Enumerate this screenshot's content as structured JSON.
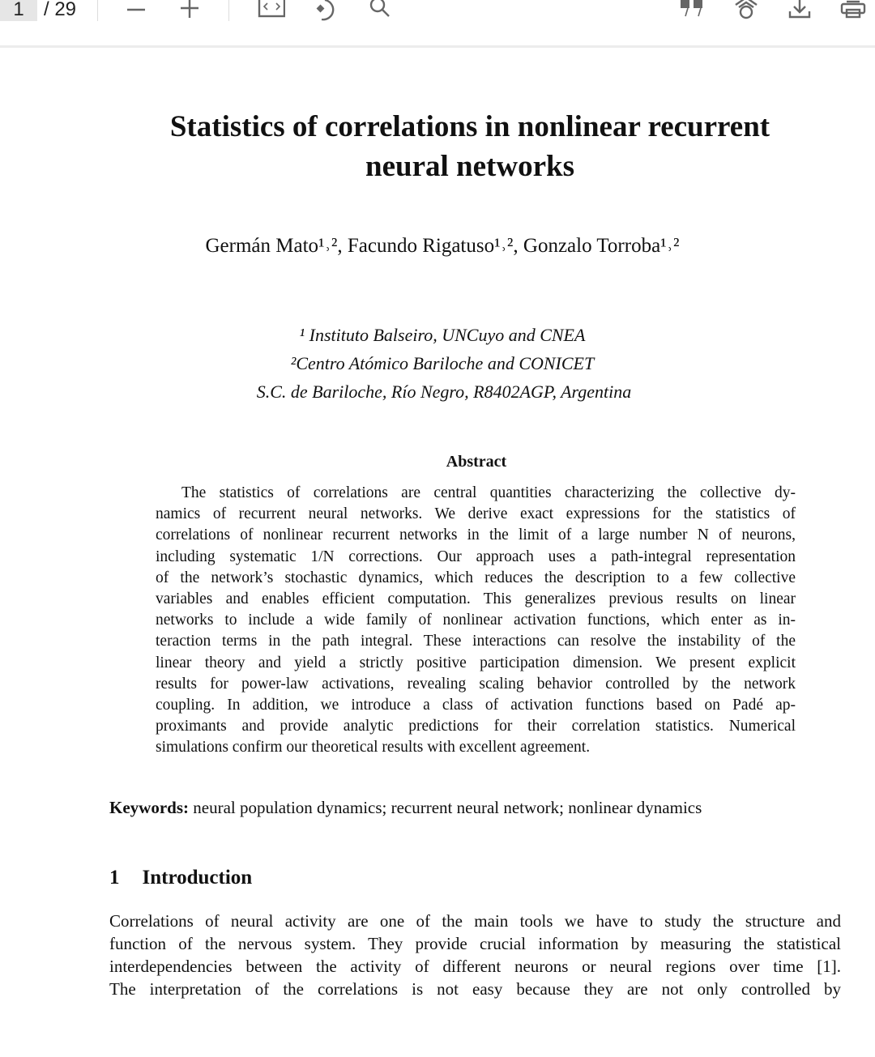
{
  "toolbar": {
    "page_current": "1",
    "page_total": "/ 29",
    "icons": [
      "zoom-out-icon",
      "zoom-in-icon",
      "fit-page-icon",
      "rotate-icon",
      "search-icon",
      "cite-icon",
      "scholar-icon",
      "download-icon",
      "print-icon"
    ]
  },
  "paper": {
    "title_lines": [
      "Statistics of correlations in nonlinear recurrent",
      "neural networks"
    ],
    "authors": "Germán Mato¹˒², Facundo Rigatuso¹˒², Gonzalo Torroba¹˒²",
    "affiliations": [
      "¹ Instituto Balseiro, UNCuyo and CNEA",
      "²Centro Atómico Bariloche and CONICET",
      "S.C. de Bariloche, Río Negro, R8402AGP, Argentina"
    ],
    "abstract_heading": "Abstract",
    "abstract_lines": [
      "The statistics of correlations are central quantities characterizing the collective dy-",
      "namics of recurrent neural networks. We derive exact expressions for the statistics of",
      "correlations of nonlinear recurrent networks in the limit of a large number N of neurons,",
      "including systematic 1/N corrections. Our approach uses a path-integral representation",
      "of the network’s stochastic dynamics, which reduces the description to a few collective",
      "variables and enables efficient computation. This generalizes previous results on linear",
      "networks to include a wide family of nonlinear activation functions, which enter as in-",
      "teraction terms in the path integral. These interactions can resolve the instability of the",
      "linear theory and yield a strictly positive participation dimension. We present explicit",
      "results for power-law activations, revealing scaling behavior controlled by the network",
      "coupling. In addition, we introduce a class of activation functions based on Padé ap-",
      "proximants and provide analytic predictions for their correlation statistics. Numerical",
      "simulations confirm our theoretical results with excellent agreement."
    ],
    "keywords_label": "Keywords:",
    "keywords": "neural population dynamics; recurrent neural network; nonlinear dynamics",
    "section_number": "1",
    "section_title": "Introduction",
    "intro_lines": [
      "Correlations of neural activity are one of the main tools we have to study the structure and",
      "function of the nervous system. They provide crucial information by measuring the statistical",
      "interdependencies between the activity of different neurons or neural regions over time [1].",
      "The interpretation of the correlations is not easy because they are not only controlled by"
    ]
  }
}
